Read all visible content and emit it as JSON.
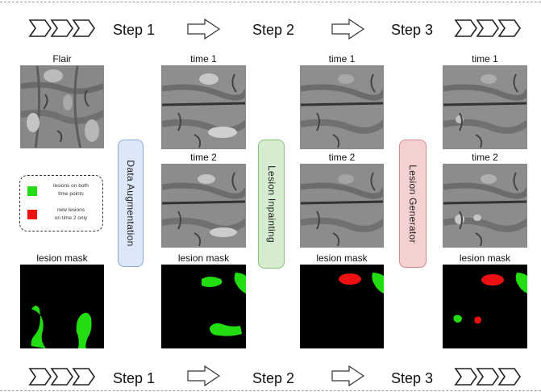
{
  "steps": {
    "step1": "Step 1",
    "step2": "Step 2",
    "step3": "Step 3"
  },
  "captions": {
    "flair": "Flair",
    "time1": "time 1",
    "time2": "time 2",
    "lesion_mask": "lesion mask"
  },
  "processes": {
    "augmentation": "Data Augmentation",
    "inpainting": "Lesion Inpainting",
    "generator": "Lesion Generator"
  },
  "legend": {
    "both": [
      "lesions on both",
      "time points"
    ],
    "new": [
      "new lesions",
      "on time 2 only"
    ]
  },
  "colors": {
    "lesion_both": "#22dd11",
    "lesion_new": "#ee1111",
    "augmentation_box": "#dce7f8",
    "inpainting_box": "#d6ecd0",
    "generator_box": "#f5d0d0"
  }
}
